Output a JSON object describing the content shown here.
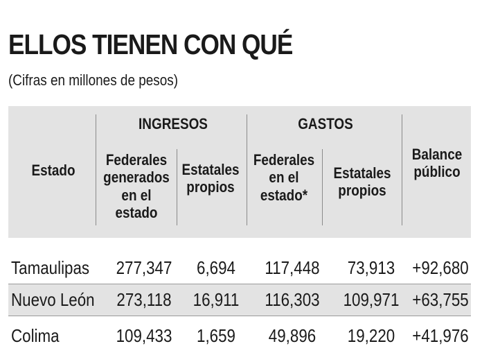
{
  "title": "ELLOS TIENEN CON QUÉ",
  "subtitle": "(Cifras en millones de pesos)",
  "headers": {
    "estado": "Estado",
    "ingresos": "INGRESOS",
    "gastos": "GASTOS",
    "ing_federales": [
      "Federales",
      "generados",
      "en el estado"
    ],
    "ing_estatales": [
      "Estatales",
      "propios"
    ],
    "gas_federales": [
      "Federales",
      "en el",
      "estado*"
    ],
    "gas_estatales": [
      "Estatales",
      "propios"
    ],
    "balance": [
      "Balance",
      "público"
    ]
  },
  "rows": [
    {
      "estado": "Tamaulipas",
      "ing_fed": "277,347",
      "ing_est": "6,694",
      "gas_fed": "117,448",
      "gas_est": "73,913",
      "balance": "+92,680"
    },
    {
      "estado": "Nuevo León",
      "ing_fed": "273,118",
      "ing_est": "16,911",
      "gas_fed": "116,303",
      "gas_est": "109,971",
      "balance": "+63,755"
    },
    {
      "estado": "Colima",
      "ing_fed": "109,433",
      "ing_est": "1,659",
      "gas_fed": "49,896",
      "gas_est": "19,220",
      "balance": "+41,976"
    }
  ]
}
